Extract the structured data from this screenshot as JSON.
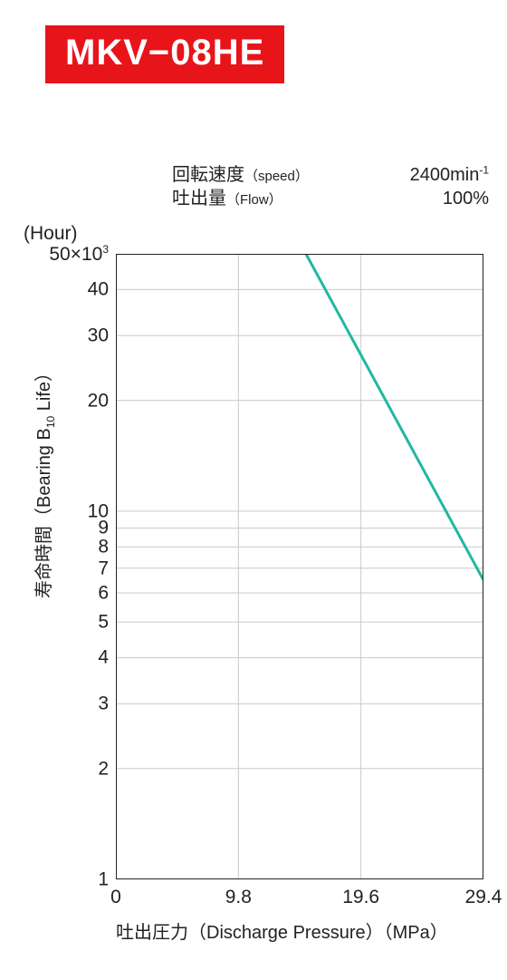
{
  "title": "MKV−08HE",
  "title_bg": "#e7141a",
  "title_fg": "#ffffff",
  "conditions": {
    "speed_key": "回転速度",
    "speed_key_sub": "（speed）",
    "speed_val_num": "2400",
    "speed_val_unit": "min",
    "speed_val_exp": "-1",
    "flow_key": "吐出量",
    "flow_key_sub": "（Flow）",
    "flow_val": "100%"
  },
  "hour_label": "(Hour)",
  "yaxis": {
    "title_jp": "寿命時間",
    "title_en_pre": "（Bearing B",
    "title_en_sub": "10",
    "title_en_post": " Life）"
  },
  "xaxis": {
    "title": "吐出圧力（Discharge Pressure）（MPa）"
  },
  "chart": {
    "type": "line-semilogy",
    "grid_color": "#c9c9c9",
    "line_color": "#1fb8a3",
    "background_color": "#ffffff",
    "x": {
      "min": 0,
      "max": 29.4,
      "ticks": [
        0,
        9.8,
        19.6,
        29.4
      ]
    },
    "y": {
      "min": 1,
      "max": 50,
      "ticks": [
        1,
        2,
        3,
        4,
        5,
        6,
        7,
        8,
        9,
        10,
        20,
        30,
        40,
        50
      ],
      "tick_labels": {
        "1": "1",
        "2": "2",
        "3": "3",
        "4": "4",
        "5": "5",
        "6": "6",
        "7": "7",
        "8": "8",
        "9": "9",
        "10": "10",
        "20": "20",
        "30": "30",
        "40": "40",
        "50": "50×10"
      },
      "tick_exp": {
        "50": "3"
      }
    },
    "series": [
      {
        "points": [
          {
            "x": 15.2,
            "y": 50
          },
          {
            "x": 29.4,
            "y": 6.5
          }
        ]
      }
    ]
  }
}
